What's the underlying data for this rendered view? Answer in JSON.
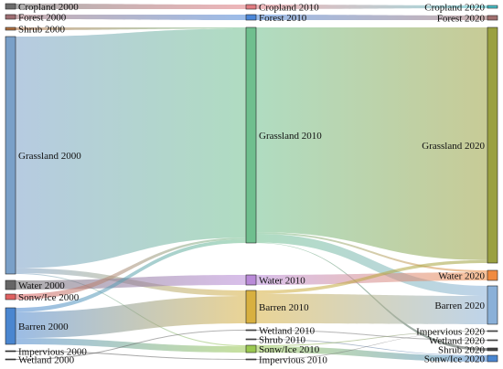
{
  "chart_data": {
    "type": "sankey",
    "columns": [
      {
        "year": "2000",
        "nodes": [
          {
            "id": "Cropland 2000",
            "label": "Cropland 2000",
            "color": "#6b6b6b"
          },
          {
            "id": "Forest 2000",
            "label": "Forest 2000",
            "color": "#9e6d72"
          },
          {
            "id": "Shrub 2000",
            "label": "Shrub 2000",
            "color": "#b07040"
          },
          {
            "id": "Grassland 2000",
            "label": "Grassland 2000",
            "color": "#7aa0c8"
          },
          {
            "id": "Water 2000",
            "label": "Water 2000",
            "color": "#666666"
          },
          {
            "id": "Sonw/Ice 2000",
            "label": "Sonw/Ice 2000",
            "color": "#e06060"
          },
          {
            "id": "Barren 2000",
            "label": "Barren 2000",
            "color": "#4a86d0"
          },
          {
            "id": "Impervious 2000",
            "label": "Impervious 2000",
            "color": "#444444"
          },
          {
            "id": "Wetland 2000",
            "label": "Wetland 2000",
            "color": "#555555"
          }
        ]
      },
      {
        "year": "2010",
        "nodes": [
          {
            "id": "Cropland 2010",
            "label": "Cropland 2010",
            "color": "#e07a80"
          },
          {
            "id": "Forest 2010",
            "label": "Forest 2010",
            "color": "#4a86d8"
          },
          {
            "id": "Grassland 2010",
            "label": "Grassland 2010",
            "color": "#6fbf8e"
          },
          {
            "id": "Water 2010",
            "label": "Water 2010",
            "color": "#b98ad8"
          },
          {
            "id": "Barren 2010",
            "label": "Barren 2010",
            "color": "#d8b040"
          },
          {
            "id": "Wetland 2010",
            "label": "Wetland 2010",
            "color": "#777777"
          },
          {
            "id": "Shrub 2010",
            "label": "Shrub 2010",
            "color": "#777777"
          },
          {
            "id": "Sonw/Ice 2010",
            "label": "Sonw/Ice 2010",
            "color": "#9ac850"
          },
          {
            "id": "Impervious 2010",
            "label": "Impervious 2010",
            "color": "#777777"
          }
        ]
      },
      {
        "year": "2020",
        "nodes": [
          {
            "id": "Cropland 2020",
            "label": "Cropland 2020",
            "color": "#48c0c8"
          },
          {
            "id": "Forest 2020",
            "label": "Forest 2020",
            "color": "#a07070"
          },
          {
            "id": "Grassland 2020",
            "label": "Grassland 2020",
            "color": "#9aa040"
          },
          {
            "id": "Water 2020",
            "label": "Water 2020",
            "color": "#f08a40"
          },
          {
            "id": "Barren 2020",
            "label": "Barren 2020",
            "color": "#8ab0d8"
          },
          {
            "id": "Impervious 2020",
            "label": "Impervious 2020",
            "color": "#777777"
          },
          {
            "id": "Wetland 2020",
            "label": "Wetland 2020",
            "color": "#777777"
          },
          {
            "id": "Shrub 2020",
            "label": "Shrub 2020",
            "color": "#444444"
          },
          {
            "id": "Sonw/Ice 2020",
            "label": "Sonw/Ice 2020",
            "color": "#4a86d0"
          }
        ]
      }
    ],
    "links": [
      {
        "source": "Cropland 2000",
        "target": "Cropland 2010",
        "value": 2
      },
      {
        "source": "Forest 2000",
        "target": "Forest 2010",
        "value": 3
      },
      {
        "source": "Shrub 2000",
        "target": "Grassland 2010",
        "value": 1.5
      },
      {
        "source": "Grassland 2000",
        "target": "Grassland 2010",
        "value": 240
      },
      {
        "source": "Grassland 2000",
        "target": "Barren 2010",
        "value": 5
      },
      {
        "source": "Grassland 2000",
        "target": "Sonw/Ice 2010",
        "value": 1
      },
      {
        "source": "Water 2000",
        "target": "Water 2010",
        "value": 8
      },
      {
        "source": "Sonw/Ice 2000",
        "target": "Grassland 2010",
        "value": 2
      },
      {
        "source": "Barren 2000",
        "target": "Barren 2010",
        "value": 25
      },
      {
        "source": "Barren 2000",
        "target": "Grassland 2010",
        "value": 4
      },
      {
        "source": "Barren 2000",
        "target": "Sonw/Ice 2010",
        "value": 6
      },
      {
        "source": "Impervious 2000",
        "target": "Impervious 2010",
        "value": 0.5
      },
      {
        "source": "Wetland 2000",
        "target": "Wetland 2010",
        "value": 0.5
      },
      {
        "source": "Cropland 2010",
        "target": "Cropland 2020",
        "value": 2
      },
      {
        "source": "Forest 2010",
        "target": "Forest 2020",
        "value": 3
      },
      {
        "source": "Grassland 2010",
        "target": "Grassland 2020",
        "value": 235
      },
      {
        "source": "Grassland 2010",
        "target": "Barren 2020",
        "value": 10
      },
      {
        "source": "Grassland 2010",
        "target": "Water 2020",
        "value": 2
      },
      {
        "source": "Grassland 2010",
        "target": "Shrub 2020",
        "value": 0.5
      },
      {
        "source": "Water 2010",
        "target": "Water 2020",
        "value": 8
      },
      {
        "source": "Barren 2010",
        "target": "Barren 2020",
        "value": 28
      },
      {
        "source": "Barren 2010",
        "target": "Grassland 2020",
        "value": 3
      },
      {
        "source": "Wetland 2010",
        "target": "Wetland 2020",
        "value": 0.5
      },
      {
        "source": "Shrub 2010",
        "target": "Sonw/Ice 2020",
        "value": 0.5
      },
      {
        "source": "Sonw/Ice 2010",
        "target": "Sonw/Ice 2020",
        "value": 6
      },
      {
        "source": "Sonw/Ice 2010",
        "target": "Impervious 2020",
        "value": 1
      },
      {
        "source": "Impervious 2010",
        "target": "Impervious 2020",
        "value": 0.5
      }
    ]
  }
}
